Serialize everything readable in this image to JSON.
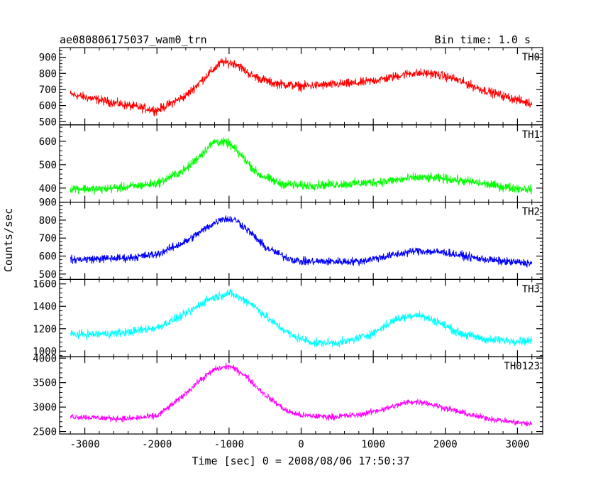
{
  "header": {
    "left": "ae080806175037_wam0_trn",
    "right": "Bin time: 1.0 s"
  },
  "chart_data": {
    "type": "line",
    "title": "ae080806175037_wam0_trn",
    "subtitle": "Bin time: 1.0 s",
    "xlabel": "Time [sec] 0 = 2008/08/06 17:50:37",
    "ylabel": "Counts/sec",
    "xlim": [
      -3350,
      3350
    ],
    "data_xrange": [
      -3200,
      3200
    ],
    "xticks": [
      -3000,
      -2000,
      -1000,
      0,
      1000,
      2000,
      3000
    ],
    "grid": false,
    "panels": [
      {
        "name": "TH0",
        "color": "#ff0000",
        "ylim": [
          480,
          960
        ],
        "yticks": [
          500,
          600,
          700,
          800,
          900
        ],
        "noise_halfwidth": 40,
        "x": [
          -3200,
          -2800,
          -2400,
          -2000,
          -1600,
          -1300,
          -1100,
          -900,
          -700,
          -400,
          0,
          400,
          800,
          1200,
          1500,
          1800,
          2100,
          2500,
          2800,
          3200
        ],
        "values": [
          670,
          635,
          600,
          570,
          660,
          790,
          870,
          860,
          790,
          740,
          720,
          730,
          740,
          770,
          800,
          800,
          770,
          700,
          660,
          610
        ]
      },
      {
        "name": "TH1",
        "color": "#00ff00",
        "ylim": [
          340,
          670
        ],
        "yticks": [
          400,
          500,
          600
        ],
        "noise_halfwidth": 28,
        "x": [
          -3200,
          -2800,
          -2400,
          -2000,
          -1600,
          -1400,
          -1200,
          -1000,
          -800,
          -600,
          -300,
          0,
          400,
          800,
          1200,
          1600,
          2000,
          2400,
          2800,
          3200
        ],
        "values": [
          400,
          395,
          405,
          420,
          480,
          540,
          600,
          590,
          530,
          460,
          420,
          410,
          415,
          420,
          430,
          445,
          440,
          425,
          405,
          395
        ]
      },
      {
        "name": "TH2",
        "color": "#0000ff",
        "ylim": [
          470,
          900
        ],
        "yticks": [
          500,
          600,
          700,
          800,
          900
        ],
        "noise_halfwidth": 32,
        "x": [
          -3200,
          -2800,
          -2400,
          -2000,
          -1600,
          -1300,
          -1100,
          -900,
          -700,
          -500,
          -200,
          0,
          400,
          800,
          1200,
          1600,
          2000,
          2400,
          2800,
          3200
        ],
        "values": [
          580,
          585,
          590,
          610,
          680,
          760,
          810,
          800,
          730,
          650,
          590,
          570,
          570,
          570,
          600,
          630,
          620,
          590,
          570,
          560
        ]
      },
      {
        "name": "TH3",
        "color": "#00ffff",
        "ylim": [
          950,
          1640
        ],
        "yticks": [
          1000,
          1200,
          1400,
          1600
        ],
        "noise_halfwidth": 55,
        "x": [
          -3200,
          -2800,
          -2400,
          -2000,
          -1600,
          -1300,
          -1000,
          -700,
          -400,
          -100,
          200,
          600,
          1000,
          1300,
          1600,
          1900,
          2200,
          2600,
          3200
        ],
        "values": [
          1150,
          1150,
          1170,
          1210,
          1330,
          1460,
          1520,
          1430,
          1260,
          1130,
          1070,
          1080,
          1160,
          1280,
          1330,
          1260,
          1160,
          1100,
          1090
        ]
      },
      {
        "name": "TH0123",
        "color": "#ff00ff",
        "ylim": [
          2450,
          4030
        ],
        "yticks": [
          2500,
          3000,
          3500,
          4000
        ],
        "noise_halfwidth": 90,
        "x": [
          -3200,
          -2800,
          -2400,
          -2000,
          -1700,
          -1400,
          -1200,
          -1000,
          -800,
          -500,
          -200,
          0,
          400,
          800,
          1200,
          1500,
          1700,
          2000,
          2400,
          2800,
          3200
        ],
        "values": [
          2810,
          2780,
          2760,
          2820,
          3150,
          3550,
          3770,
          3840,
          3680,
          3250,
          2920,
          2830,
          2800,
          2840,
          2980,
          3110,
          3100,
          2980,
          2820,
          2720,
          2650
        ]
      }
    ]
  }
}
